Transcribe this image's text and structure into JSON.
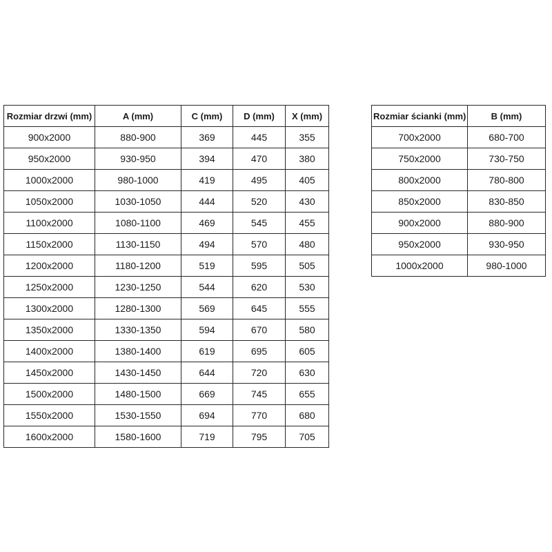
{
  "colors": {
    "background": "#ffffff",
    "border": "#262626",
    "text": "#1a1a1a"
  },
  "doors_table": {
    "name": "door-sizes-table",
    "headers": [
      "Rozmiar drzwi (mm)",
      "A (mm)",
      "C (mm)",
      "D (mm)",
      "X (mm)"
    ],
    "rows": [
      [
        "900x2000",
        "880-900",
        "369",
        "445",
        "355"
      ],
      [
        "950x2000",
        "930-950",
        "394",
        "470",
        "380"
      ],
      [
        "1000x2000",
        "980-1000",
        "419",
        "495",
        "405"
      ],
      [
        "1050x2000",
        "1030-1050",
        "444",
        "520",
        "430"
      ],
      [
        "1100x2000",
        "1080-1100",
        "469",
        "545",
        "455"
      ],
      [
        "1150x2000",
        "1130-1150",
        "494",
        "570",
        "480"
      ],
      [
        "1200x2000",
        "1180-1200",
        "519",
        "595",
        "505"
      ],
      [
        "1250x2000",
        "1230-1250",
        "544",
        "620",
        "530"
      ],
      [
        "1300x2000",
        "1280-1300",
        "569",
        "645",
        "555"
      ],
      [
        "1350x2000",
        "1330-1350",
        "594",
        "670",
        "580"
      ],
      [
        "1400x2000",
        "1380-1400",
        "619",
        "695",
        "605"
      ],
      [
        "1450x2000",
        "1430-1450",
        "644",
        "720",
        "630"
      ],
      [
        "1500x2000",
        "1480-1500",
        "669",
        "745",
        "655"
      ],
      [
        "1550x2000",
        "1530-1550",
        "694",
        "770",
        "680"
      ],
      [
        "1600x2000",
        "1580-1600",
        "719",
        "795",
        "705"
      ]
    ]
  },
  "walls_table": {
    "name": "wall-sizes-table",
    "headers": [
      "Rozmiar ścianki (mm)",
      "B (mm)"
    ],
    "rows": [
      [
        "700x2000",
        "680-700"
      ],
      [
        "750x2000",
        "730-750"
      ],
      [
        "800x2000",
        "780-800"
      ],
      [
        "850x2000",
        "830-850"
      ],
      [
        "900x2000",
        "880-900"
      ],
      [
        "950x2000",
        "930-950"
      ],
      [
        "1000x2000",
        "980-1000"
      ]
    ]
  }
}
